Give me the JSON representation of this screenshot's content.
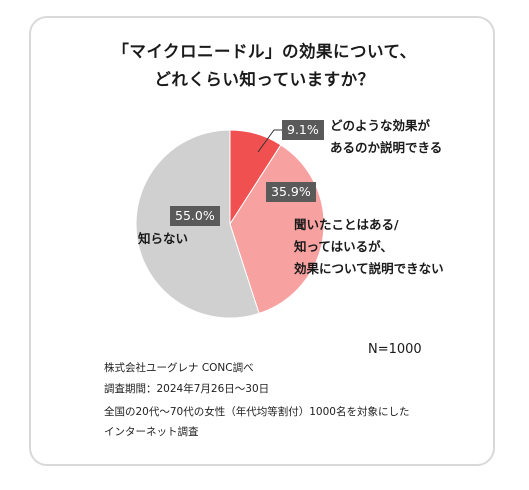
{
  "title_lines": [
    "「マイクロニードル」の効果について、",
    "どれくらい知っていますか？"
  ],
  "sample_size": "N=1000",
  "notes": [
    "株式会社ユーグレナ CONC調べ",
    "調査期間：2024年7月26日～30日",
    "全国の20代～70代の女性（年代均等割付）1000名を対象にした",
    "インターネット調査"
  ],
  "colors": {
    "explain": "#f05050",
    "heard": "#f7a1a1",
    "unknown": "#d0d0d0",
    "label_bg": "#5a5a5a",
    "border": "#d9d9d9"
  },
  "chart_data": {
    "type": "pie",
    "title": "「マイクロニードル」の効果について、どれくらい知っていますか？",
    "slices": [
      {
        "label": [
          "どのような効果が",
          "あるのか説明できる"
        ],
        "value": 9.1,
        "display": "9.1%",
        "color": "#f05050"
      },
      {
        "label": [
          "聞いたことはある/",
          "知ってはいるが、",
          "効果について説明できない"
        ],
        "value": 35.9,
        "display": "35.9%",
        "color": "#f7a1a1"
      },
      {
        "label": [
          "知らない"
        ],
        "value": 55.0,
        "display": "55.0%",
        "color": "#d0d0d0"
      }
    ]
  }
}
